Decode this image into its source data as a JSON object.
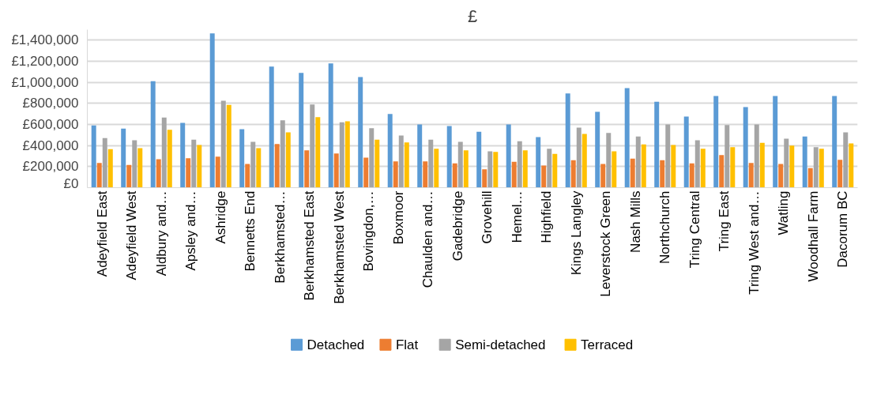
{
  "chart_data": {
    "type": "bar",
    "title": "£",
    "categories": [
      "Adeyfield East",
      "Adeyfield West",
      "Aldbury and…",
      "Apsley and…",
      "Ashridge",
      "Bennetts End",
      "Berkhamsted…",
      "Berkhamsted East",
      "Berkhamsted West",
      "Bovingdon,…",
      "Boxmoor",
      "Chaulden and…",
      "Gadebridge",
      "Grovehill",
      "Hemel…",
      "Highfield",
      "Kings Langley",
      "Leverstock Green",
      "Nash Mills",
      "Northchurch",
      "Tring Central",
      "Tring East",
      "Tring West and…",
      "Watling",
      "Woodhall Farm",
      "Dacorum BC"
    ],
    "series": [
      {
        "name": "Detached",
        "color": "#5b9bd5",
        "values": [
          590000,
          560000,
          1010000,
          615000,
          1465000,
          555000,
          1150000,
          1090000,
          1180000,
          1050000,
          700000,
          600000,
          585000,
          530000,
          600000,
          480000,
          895000,
          720000,
          945000,
          815000,
          675000,
          870000,
          765000,
          870000,
          485000,
          870000
        ]
      },
      {
        "name": "Flat",
        "color": "#ed7d31",
        "values": [
          235000,
          215000,
          270000,
          280000,
          295000,
          225000,
          415000,
          355000,
          325000,
          285000,
          250000,
          250000,
          230000,
          175000,
          245000,
          210000,
          260000,
          225000,
          275000,
          260000,
          230000,
          310000,
          235000,
          225000,
          185000,
          265000
        ]
      },
      {
        "name": "Semi-detached",
        "color": "#a5a5a5",
        "values": [
          470000,
          450000,
          665000,
          455000,
          825000,
          435000,
          640000,
          790000,
          620000,
          565000,
          495000,
          455000,
          435000,
          345000,
          440000,
          370000,
          570000,
          520000,
          485000,
          600000,
          450000,
          595000,
          600000,
          465000,
          385000,
          525000
        ]
      },
      {
        "name": "Terraced",
        "color": "#ffc000",
        "values": [
          365000,
          375000,
          550000,
          405000,
          785000,
          375000,
          525000,
          670000,
          630000,
          455000,
          430000,
          370000,
          355000,
          340000,
          355000,
          320000,
          510000,
          345000,
          410000,
          405000,
          370000,
          385000,
          425000,
          400000,
          370000,
          420000
        ]
      }
    ],
    "ylim": [
      0,
      1500000
    ],
    "yticks": [
      {
        "value": 0,
        "label": "£0"
      },
      {
        "value": 200000,
        "label": "£200,000"
      },
      {
        "value": 400000,
        "label": "£400,000"
      },
      {
        "value": 600000,
        "label": "£600,000"
      },
      {
        "value": 800000,
        "label": "£800,000"
      },
      {
        "value": 1000000,
        "label": "£1,000,000"
      },
      {
        "value": 1200000,
        "label": "£1,200,000"
      },
      {
        "value": 1400000,
        "label": "£1,400,000"
      }
    ],
    "grid": "y",
    "legend": "bottom"
  }
}
